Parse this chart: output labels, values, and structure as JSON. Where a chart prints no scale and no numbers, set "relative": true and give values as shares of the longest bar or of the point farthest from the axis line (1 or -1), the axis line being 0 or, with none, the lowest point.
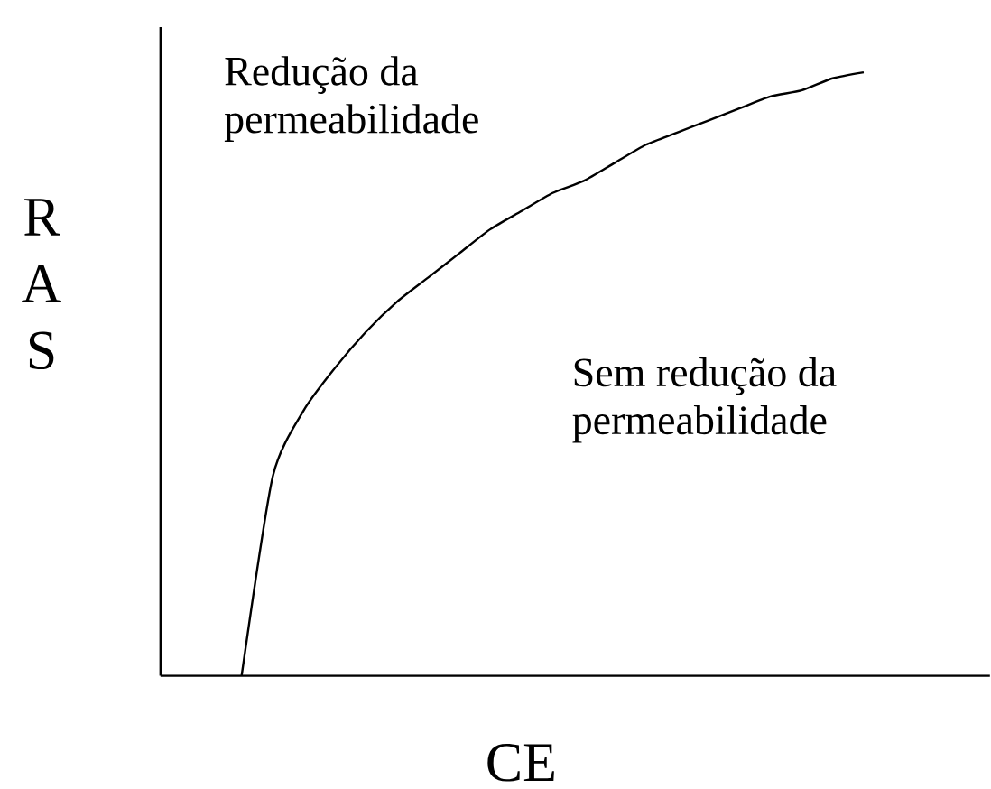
{
  "chart_data": {
    "type": "line",
    "relative": true,
    "xlabel": "CE",
    "ylabel": "RAS",
    "color": "#000000",
    "categories": [
      null,
      null,
      null,
      null,
      null,
      null,
      null,
      null,
      null,
      null,
      null,
      null,
      null,
      null,
      null,
      null,
      null,
      null,
      null,
      null,
      null
    ],
    "values": [
      0,
      0.33,
      0.44,
      0.51,
      0.57,
      0.62,
      0.66,
      0.7,
      0.74,
      0.77,
      0.8,
      0.82,
      0.85,
      0.88,
      0.9,
      0.92,
      0.94,
      0.96,
      0.97,
      0.99,
      1.0
    ],
    "annotations": [
      "Redução da permeabilidade",
      "Sem redução da permeabilidade"
    ]
  }
}
